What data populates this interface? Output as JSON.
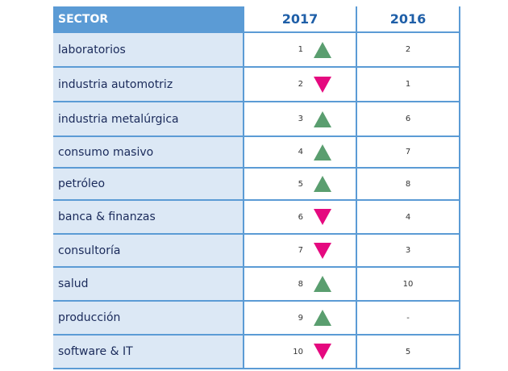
{
  "table": {
    "header": [
      "SECTOR",
      "2017",
      "2016"
    ],
    "rows": [
      {
        "sector": "laboratorios",
        "rank_2017": 1,
        "trend": "up",
        "rank_2016": 2
      },
      {
        "sector": "industria automotriz",
        "rank_2017": 2,
        "trend": "down",
        "rank_2016": 1
      },
      {
        "sector": "industria metalúrgica",
        "rank_2017": 3,
        "trend": "up",
        "rank_2016": 6
      },
      {
        "sector": "consumo masivo",
        "rank_2017": 4,
        "trend": "up",
        "rank_2016": 7
      },
      {
        "sector": "petróleo",
        "rank_2017": 5,
        "trend": "up",
        "rank_2016": 8
      },
      {
        "sector": "banca & finanzas",
        "rank_2017": 6,
        "trend": "down",
        "rank_2016": 4
      },
      {
        "sector": "consultoría",
        "rank_2017": 7,
        "trend": "down",
        "rank_2016": 3
      },
      {
        "sector": "salud",
        "rank_2017": 8,
        "trend": "up",
        "rank_2016": 10
      },
      {
        "sector": "producción",
        "rank_2017": 9,
        "trend": "up",
        "rank_2016": "-"
      },
      {
        "sector": "software & IT",
        "rank_2017": 10,
        "trend": "down",
        "rank_2016": 5
      }
    ]
  }
}
